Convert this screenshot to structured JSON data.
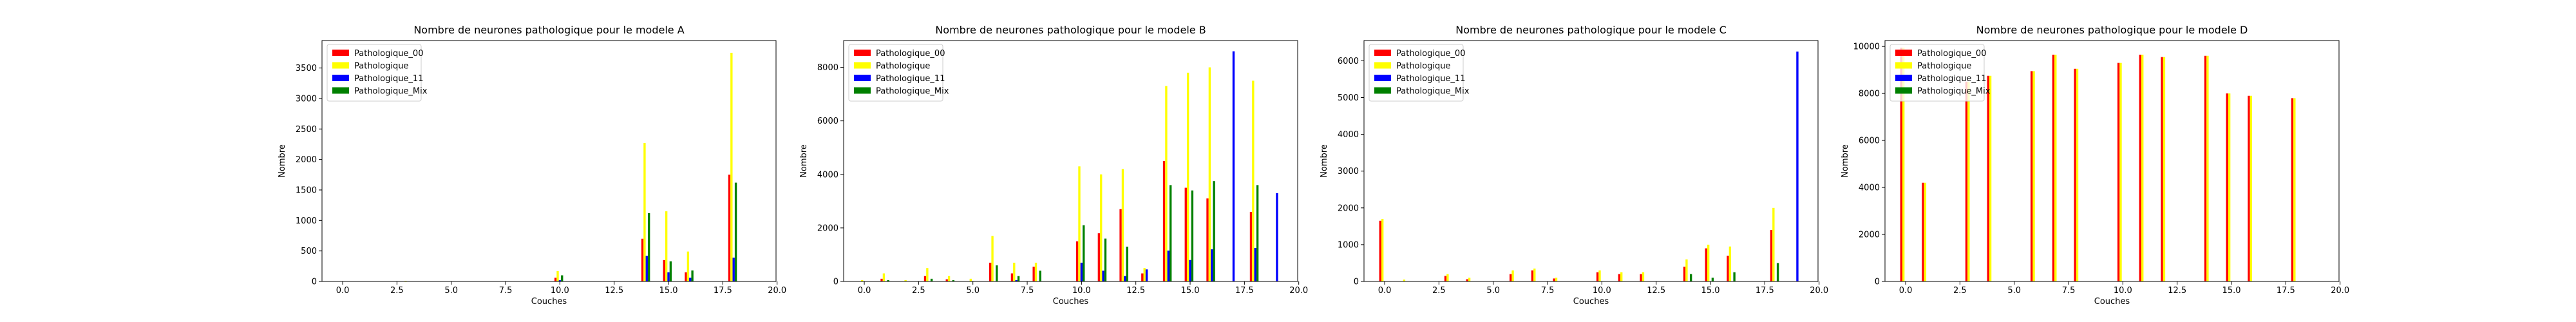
{
  "figure": {
    "legend_location": "upper-left",
    "series_colors": {
      "Pathologique_00": "#ff0000",
      "Pathologique": "#ffff00",
      "Pathologique_11": "#0000ff",
      "Pathologique_Mix": "#008000"
    }
  },
  "chart_data": [
    {
      "type": "bar",
      "title": "Nombre de neurones pathologique pour le modele A",
      "xlabel": "Couches",
      "ylabel": "Nombre",
      "xlim": [
        -0.95,
        19.95
      ],
      "ylim": [
        0,
        3950
      ],
      "xticks": [
        0.0,
        2.5,
        5.0,
        7.5,
        10.0,
        12.5,
        15.0,
        17.5,
        20.0
      ],
      "xtick_labels": [
        "0.0",
        "2.5",
        "5.0",
        "7.5",
        "10.0",
        "12.5",
        "15.0",
        "17.5",
        "20.0"
      ],
      "yticks": [
        0,
        500,
        1000,
        1500,
        2000,
        2500,
        3000,
        3500
      ],
      "ytick_labels": [
        "0",
        "500",
        "1000",
        "1500",
        "2000",
        "2500",
        "3000",
        "3500"
      ],
      "x": [
        0,
        1,
        2,
        3,
        4,
        5,
        6,
        7,
        8,
        9,
        10,
        11,
        12,
        13,
        14,
        15,
        16,
        17,
        18,
        19
      ],
      "series": [
        {
          "name": "Pathologique_00",
          "color": "#ff0000",
          "values": [
            0,
            0,
            0,
            0,
            0,
            0,
            0,
            0,
            0,
            0,
            60,
            0,
            0,
            0,
            700,
            350,
            150,
            0,
            1750,
            0
          ]
        },
        {
          "name": "Pathologique",
          "color": "#ffff00",
          "values": [
            5,
            0,
            0,
            10,
            5,
            0,
            0,
            0,
            0,
            0,
            170,
            0,
            0,
            0,
            2270,
            1150,
            490,
            0,
            3750,
            0
          ]
        },
        {
          "name": "Pathologique_11",
          "color": "#0000ff",
          "values": [
            0,
            0,
            0,
            0,
            0,
            0,
            0,
            0,
            0,
            0,
            20,
            0,
            0,
            0,
            420,
            150,
            60,
            0,
            390,
            0
          ]
        },
        {
          "name": "Pathologique_Mix",
          "color": "#008000",
          "values": [
            0,
            0,
            0,
            0,
            0,
            0,
            0,
            0,
            0,
            0,
            100,
            0,
            0,
            0,
            1120,
            330,
            180,
            0,
            1620,
            0
          ]
        }
      ]
    },
    {
      "type": "bar",
      "title": "Nombre de neurones pathologique pour le modele B",
      "xlabel": "Couches",
      "ylabel": "Nombre",
      "xlim": [
        -0.95,
        19.95
      ],
      "ylim": [
        0,
        9000
      ],
      "xticks": [
        0.0,
        2.5,
        5.0,
        7.5,
        10.0,
        12.5,
        15.0,
        17.5,
        20.0
      ],
      "xtick_labels": [
        "0.0",
        "2.5",
        "5.0",
        "7.5",
        "10.0",
        "12.5",
        "15.0",
        "17.5",
        "20.0"
      ],
      "yticks": [
        0,
        2000,
        4000,
        6000,
        8000
      ],
      "ytick_labels": [
        "0",
        "2000",
        "4000",
        "6000",
        "8000"
      ],
      "x": [
        0,
        1,
        2,
        3,
        4,
        5,
        6,
        7,
        8,
        9,
        10,
        11,
        12,
        13,
        14,
        15,
        16,
        17,
        18,
        19
      ],
      "series": [
        {
          "name": "Pathologique_00",
          "color": "#ff0000",
          "values": [
            0,
            100,
            0,
            200,
            80,
            0,
            700,
            300,
            550,
            0,
            1500,
            1800,
            2700,
            300,
            4500,
            3500,
            3100,
            0,
            2600,
            0
          ]
        },
        {
          "name": "Pathologique",
          "color": "#ffff00",
          "values": [
            50,
            300,
            50,
            500,
            200,
            100,
            1700,
            700,
            700,
            0,
            4300,
            4000,
            4200,
            500,
            7300,
            7800,
            8000,
            0,
            7500,
            0
          ]
        },
        {
          "name": "Pathologique_11",
          "color": "#0000ff",
          "values": [
            0,
            0,
            0,
            0,
            0,
            0,
            0,
            50,
            0,
            0,
            700,
            400,
            200,
            450,
            1150,
            800,
            1200,
            8600,
            1250,
            3300
          ]
        },
        {
          "name": "Pathologique_Mix",
          "color": "#008000",
          "values": [
            0,
            50,
            0,
            100,
            50,
            0,
            600,
            200,
            400,
            0,
            2100,
            1600,
            1300,
            0,
            3600,
            3400,
            3750,
            0,
            3600,
            0
          ]
        }
      ]
    },
    {
      "type": "bar",
      "title": "Nombre de neurones pathologique pour le modele C",
      "xlabel": "Couches",
      "ylabel": "Nombre",
      "xlim": [
        -0.95,
        19.95
      ],
      "ylim": [
        0,
        6550
      ],
      "xticks": [
        0.0,
        2.5,
        5.0,
        7.5,
        10.0,
        12.5,
        15.0,
        17.5,
        20.0
      ],
      "xtick_labels": [
        "0.0",
        "2.5",
        "5.0",
        "7.5",
        "10.0",
        "12.5",
        "15.0",
        "17.5",
        "20.0"
      ],
      "yticks": [
        0,
        1000,
        2000,
        3000,
        4000,
        5000,
        6000
      ],
      "ytick_labels": [
        "0",
        "1000",
        "2000",
        "3000",
        "4000",
        "5000",
        "6000"
      ],
      "x": [
        0,
        1,
        2,
        3,
        4,
        5,
        6,
        7,
        8,
        9,
        10,
        11,
        12,
        13,
        14,
        15,
        16,
        17,
        18,
        19
      ],
      "series": [
        {
          "name": "Pathologique_00",
          "color": "#ff0000",
          "values": [
            1650,
            0,
            0,
            150,
            60,
            0,
            200,
            300,
            80,
            0,
            250,
            200,
            200,
            0,
            400,
            900,
            700,
            0,
            1400,
            0
          ]
        },
        {
          "name": "Pathologique",
          "color": "#ffff00",
          "values": [
            1700,
            50,
            0,
            200,
            100,
            0,
            300,
            350,
            100,
            0,
            300,
            250,
            250,
            0,
            600,
            1000,
            950,
            0,
            2000,
            0
          ]
        },
        {
          "name": "Pathologique_11",
          "color": "#0000ff",
          "values": [
            0,
            0,
            0,
            0,
            0,
            0,
            0,
            0,
            0,
            0,
            0,
            0,
            0,
            0,
            0,
            0,
            0,
            0,
            0,
            6250
          ]
        },
        {
          "name": "Pathologique_Mix",
          "color": "#008000",
          "values": [
            0,
            0,
            0,
            0,
            0,
            0,
            0,
            0,
            0,
            0,
            0,
            0,
            0,
            0,
            200,
            100,
            250,
            0,
            500,
            0
          ]
        }
      ]
    },
    {
      "type": "bar",
      "title": "Nombre de neurones pathologique pour le modele D",
      "xlabel": "Couches",
      "ylabel": "Nombre",
      "xlim": [
        -0.95,
        19.95
      ],
      "ylim": [
        0,
        10250
      ],
      "xticks": [
        0.0,
        2.5,
        5.0,
        7.5,
        10.0,
        12.5,
        15.0,
        17.5,
        20.0
      ],
      "xtick_labels": [
        "0.0",
        "2.5",
        "5.0",
        "7.5",
        "10.0",
        "12.5",
        "15.0",
        "17.5",
        "20.0"
      ],
      "yticks": [
        0,
        2000,
        4000,
        6000,
        8000,
        10000
      ],
      "ytick_labels": [
        "0",
        "2000",
        "4000",
        "6000",
        "8000",
        "10000"
      ],
      "x": [
        0,
        1,
        2,
        3,
        4,
        5,
        6,
        7,
        8,
        9,
        10,
        11,
        12,
        13,
        14,
        15,
        16,
        17,
        18,
        19
      ],
      "series": [
        {
          "name": "Pathologique_00",
          "color": "#ff0000",
          "values": [
            9950,
            4200,
            0,
            8500,
            8750,
            0,
            8950,
            9650,
            9050,
            0,
            9300,
            9650,
            9550,
            0,
            9600,
            8000,
            7900,
            0,
            7800,
            0
          ]
        },
        {
          "name": "Pathologique",
          "color": "#ffff00",
          "values": [
            9950,
            4200,
            0,
            8500,
            8750,
            0,
            8950,
            9650,
            9050,
            0,
            9300,
            9650,
            9550,
            0,
            9600,
            8000,
            7900,
            0,
            7800,
            0
          ]
        },
        {
          "name": "Pathologique_11",
          "color": "#0000ff",
          "values": [
            0,
            0,
            0,
            0,
            0,
            0,
            0,
            0,
            0,
            0,
            0,
            0,
            0,
            0,
            0,
            0,
            0,
            0,
            0,
            0
          ]
        },
        {
          "name": "Pathologique_Mix",
          "color": "#008000",
          "values": [
            0,
            0,
            0,
            0,
            0,
            0,
            0,
            0,
            0,
            0,
            0,
            0,
            0,
            0,
            0,
            0,
            0,
            0,
            0,
            0
          ]
        }
      ]
    }
  ]
}
